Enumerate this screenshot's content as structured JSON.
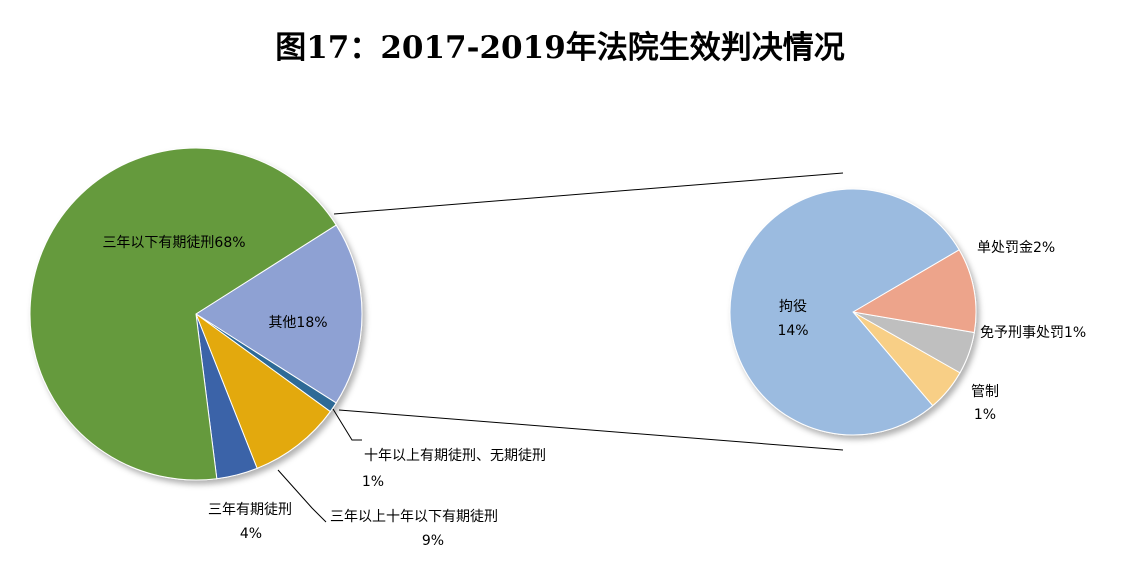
{
  "chart_data": {
    "type": "pie",
    "title": "图17：2017-2019年法院生效判决情况",
    "main_pie": {
      "slices": [
        {
          "name": "三年以下有期徒刑",
          "value": 68,
          "label": "三年以下有期徒刑68%",
          "color": "#659a3d"
        },
        {
          "name": "其他",
          "value": 18,
          "label": "其他18%",
          "color": "#8ea1d3"
        },
        {
          "name": "十年以上有期徒刑、无期徒刑",
          "value": 1,
          "label_line1": "十年以上有期徒刑、无期徒刑",
          "label_line2": "1%",
          "color": "#2e6b96"
        },
        {
          "name": "三年以上十年以下有期徒刑",
          "value": 9,
          "label_line1": "三年以上十年以下有期徒刑",
          "label_line2": "9%",
          "color": "#e3a90a"
        },
        {
          "name": "三年有期徒刑",
          "value": 4,
          "label_line1": "三年有期徒刑",
          "label_line2": "4%",
          "color": "#3a63a8"
        }
      ]
    },
    "secondary_pie": {
      "breakdown_of": "其他",
      "slices": [
        {
          "name": "拘役",
          "value": 14,
          "label_line1": "拘役",
          "label_line2": "14%",
          "color": "#9bbbe0"
        },
        {
          "name": "单处罚金",
          "value": 2,
          "label": "单处罚金2%",
          "color": "#eda48b"
        },
        {
          "name": "免予刑事处罚",
          "value": 1,
          "label": "免予刑事处罚1%",
          "color": "#bfbfbf"
        },
        {
          "name": "管制",
          "value": 1,
          "label_line1": "管制",
          "label_line2": "1%",
          "color": "#f8cf86"
        }
      ]
    }
  }
}
